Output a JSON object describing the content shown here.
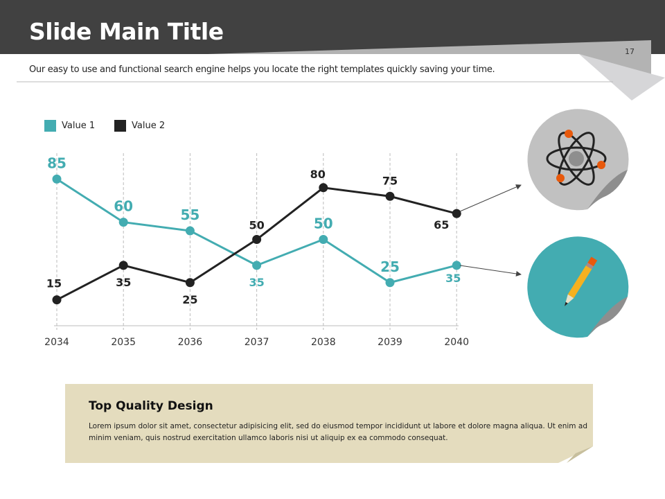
{
  "header": {
    "title": "Slide Main Title",
    "page_number": "17",
    "subtitle": "Our easy to use and functional search engine helps you locate the right templates quickly saving your time."
  },
  "colors": {
    "header": "#414141",
    "value1": "#43acb1",
    "value2": "#222222",
    "box": "#e4dcbe",
    "accent": "#e8590c"
  },
  "chart_data": {
    "type": "line",
    "categories": [
      "2034",
      "2035",
      "2036",
      "2037",
      "2038",
      "2039",
      "2040"
    ],
    "series": [
      {
        "name": "Value 1",
        "values": [
          85,
          60,
          55,
          35,
          50,
          25,
          35
        ]
      },
      {
        "name": "Value 2",
        "values": [
          15,
          35,
          25,
          50,
          80,
          75,
          65
        ]
      }
    ],
    "ylim": [
      0,
      100
    ],
    "xlabel": "",
    "ylabel": "",
    "legend": "top-left",
    "grid": "vertical dashed"
  },
  "legend": {
    "value1": "Value 1",
    "value2": "Value 2"
  },
  "icons": {
    "top": "atom-icon",
    "bottom": "pencil-icon"
  },
  "textbox": {
    "heading": "Top Quality Design",
    "body": "Lorem ipsum dolor sit amet, consectetur adipisicing elit, sed do eiusmod tempor incididunt ut labore et dolore magna aliqua. Ut enim ad minim veniam, quis nostrud exercitation ullamco laboris nisi ut aliquip ex ea commodo consequat."
  }
}
